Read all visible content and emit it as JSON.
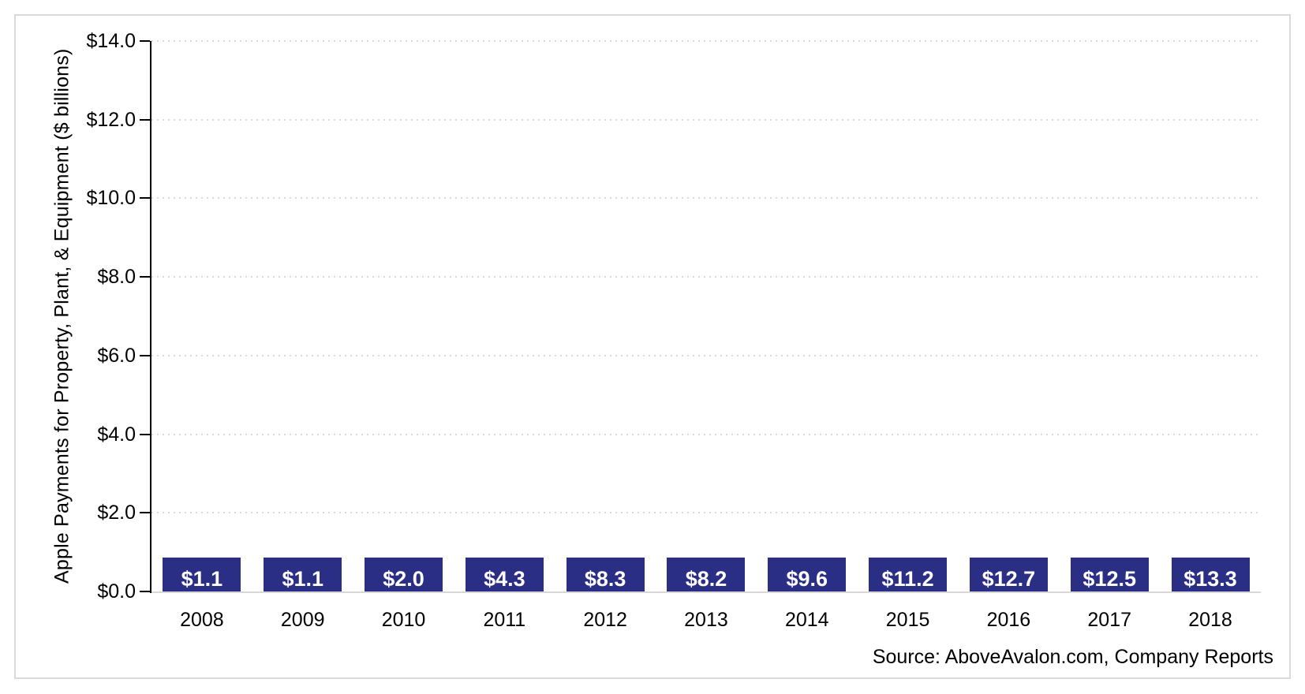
{
  "chart_data": {
    "type": "bar",
    "title": "",
    "categories": [
      "2008",
      "2009",
      "2010",
      "2011",
      "2012",
      "2013",
      "2014",
      "2015",
      "2016",
      "2017",
      "2018"
    ],
    "values": [
      1.1,
      1.1,
      2.0,
      4.3,
      8.3,
      8.2,
      9.6,
      11.2,
      12.7,
      12.5,
      13.3
    ],
    "bar_labels": [
      "$1.1",
      "$1.1",
      "$2.0",
      "$4.3",
      "$8.3",
      "$8.2",
      "$9.6",
      "$11.2",
      "$12.7",
      "$12.5",
      "$13.3"
    ],
    "xlabel": "",
    "ylabel": "Apple Payments for Property, Plant, & Equipment ($ billions)",
    "ylim": [
      0,
      14
    ],
    "ytick_interval": 2,
    "ytick_labels": [
      "$0.0",
      "$2.0",
      "$4.0",
      "$6.0",
      "$8.0",
      "$10.0",
      "$12.0",
      "$14.0"
    ],
    "grid": "horizontal-dotted",
    "legend": "none"
  },
  "footer": {
    "source": "Source: AboveAvalon.com, Company Reports"
  },
  "colors": {
    "bar": "#2A2E85",
    "bar_value_text": "#FFFFFF",
    "gridline": "#D9D9D9",
    "axis_line": "#000000",
    "baseline": "#D7D7D7",
    "frame_border": "#D9D9D9",
    "text": "#000000"
  }
}
